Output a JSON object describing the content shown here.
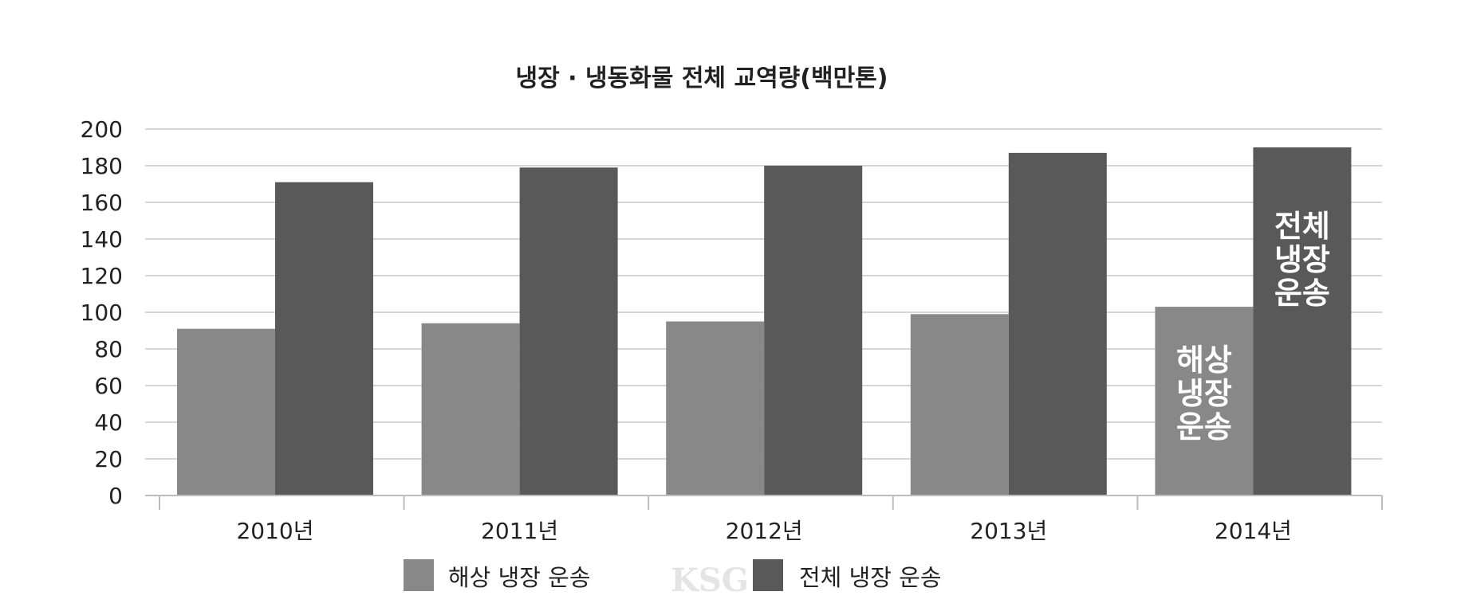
{
  "chart_data": {
    "type": "bar",
    "title": "냉장 · 냉동화물 전체 교역량(백만톤)",
    "categories": [
      "2010년",
      "2011년",
      "2012년",
      "2013년",
      "2014년"
    ],
    "series": [
      {
        "name": "해상 냉장 운송",
        "values": [
          91,
          94,
          95,
          99,
          103
        ],
        "color": "#888888"
      },
      {
        "name": "전체 냉장 운송",
        "values": [
          171,
          179,
          180,
          187,
          190
        ],
        "color": "#595959"
      }
    ],
    "ylim": [
      0,
      200
    ],
    "yticks": [
      "0",
      "20",
      "40",
      "60",
      "80",
      "100",
      "120",
      "140",
      "160",
      "180",
      "200"
    ],
    "grid": true,
    "legend": "bottom",
    "annotations": [
      {
        "series": "해상 냉장 운송",
        "category": "2014년",
        "lines": [
          "해상",
          "냉장",
          "운송"
        ]
      },
      {
        "series": "전체 냉장 운송",
        "category": "2014년",
        "lines": [
          "전체",
          "냉장",
          "운송"
        ]
      }
    ],
    "watermark": "KSG"
  }
}
